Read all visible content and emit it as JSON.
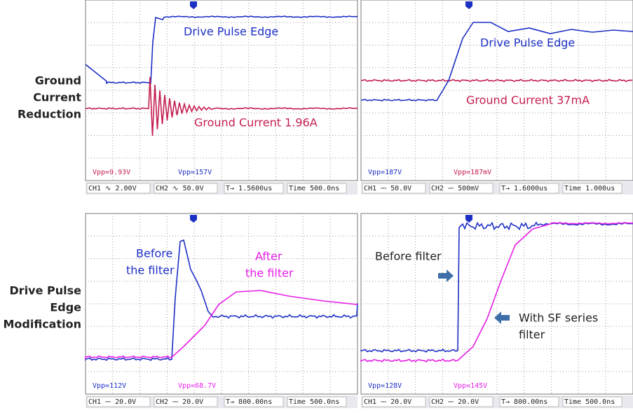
{
  "row_labels": [
    [
      "Ground",
      "Current",
      "Reduction"
    ],
    [
      "Drive Pulse",
      "Edge",
      "Modification"
    ]
  ],
  "panels": [
    {
      "annotations": [
        [
          "Drive Pulse Edge"
        ],
        [
          "Ground Current 1.96A"
        ]
      ],
      "readouts": [
        "Vpp=9.93V",
        "Vpp=157V"
      ],
      "status": [
        "CH1 ∿ 2.00V",
        "CH2 ∿ 50.0V",
        "T→ 1.5600us",
        "Time 500.0ns"
      ]
    },
    {
      "annotations": [
        [
          "Drive Pulse Edge"
        ],
        [
          "Ground Current  37mA"
        ]
      ],
      "readouts": [
        "Vpp=187V",
        "Vpp=187mV"
      ],
      "status": [
        "CH1 ⎓ 50.0V",
        "CH2 ⎓ 500mV",
        "T→ 1.6000us",
        "Time 1.000us"
      ]
    },
    {
      "annotations": [
        [
          "Before",
          "the filter"
        ],
        [
          "After",
          "the filter"
        ]
      ],
      "readouts": [
        "Vpp=112V",
        "Vpp=68.7V"
      ],
      "status": [
        "CH1 ⎓ 20.0V",
        "CH2 ⎓ 20.0V",
        "T→ 800.00ns",
        "Time 500.0ns"
      ]
    },
    {
      "annotations": [
        [
          "Before filter"
        ],
        [
          "With SF series",
          "filter"
        ]
      ],
      "readouts": [
        "Vpp=128V",
        "Vpp=145V"
      ],
      "status": [
        "CH1 ⎓ 20.0V",
        "CH2 ⎓ 20.0V",
        "T→ 800.00ns",
        "Time 500.0ns"
      ]
    }
  ]
}
